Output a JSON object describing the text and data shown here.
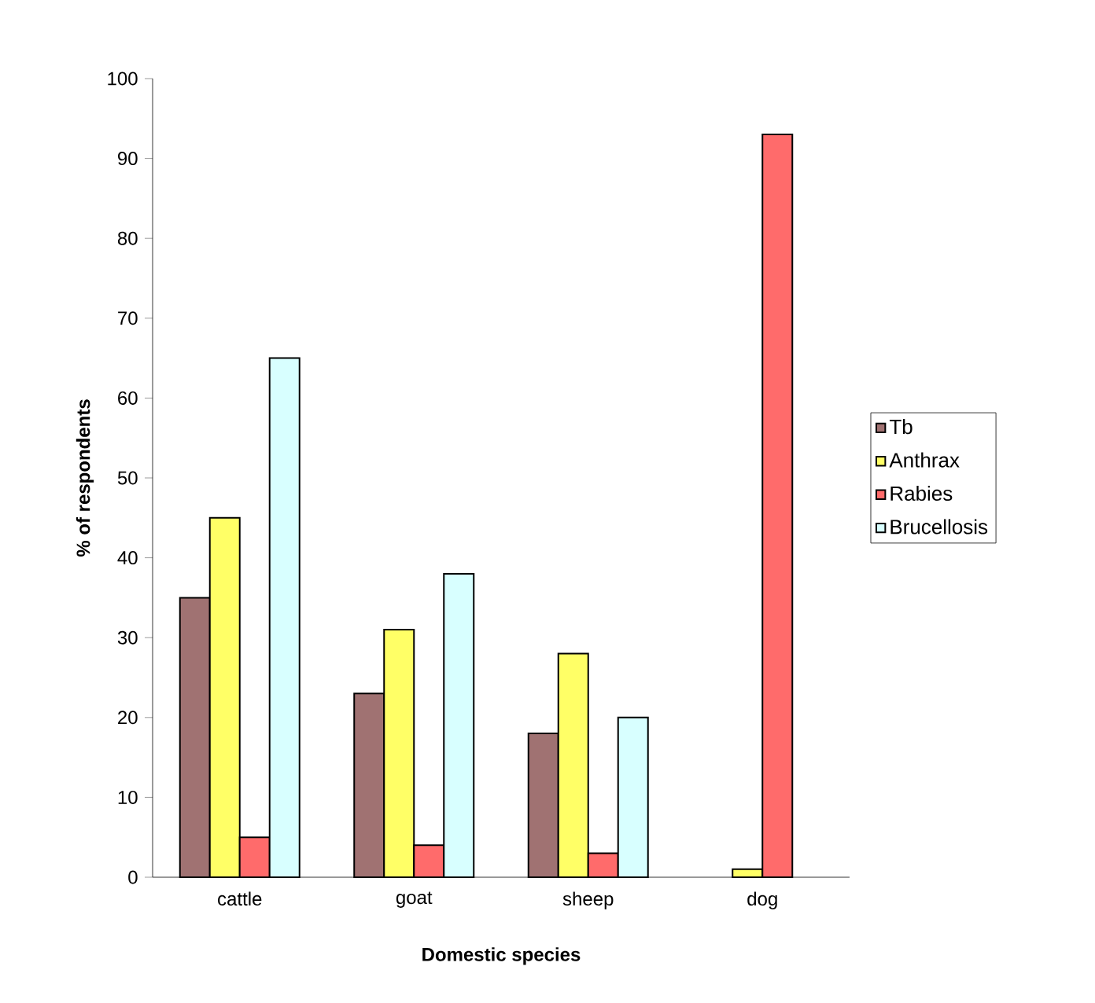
{
  "chart_data": {
    "type": "bar",
    "xlabel": "Domestic species",
    "ylabel": "% of respondents",
    "categories": [
      "cattle",
      "goat",
      "sheep",
      "dog"
    ],
    "series": [
      {
        "name": "Tb",
        "color": "#a07272",
        "values": [
          35,
          23,
          18,
          null
        ]
      },
      {
        "name": "Anthrax",
        "color": "#ffff66",
        "values": [
          45,
          31,
          28,
          1
        ]
      },
      {
        "name": "Rabies",
        "color": "#ff6b6b",
        "values": [
          5,
          4,
          3,
          93
        ]
      },
      {
        "name": "Brucellosis",
        "color": "#d8ffff",
        "values": [
          65,
          38,
          20,
          null
        ]
      }
    ],
    "ylim": [
      0,
      100
    ],
    "yticks": [
      0,
      10,
      20,
      30,
      40,
      50,
      60,
      70,
      80,
      90,
      100
    ],
    "grid": false,
    "legend": "right"
  }
}
